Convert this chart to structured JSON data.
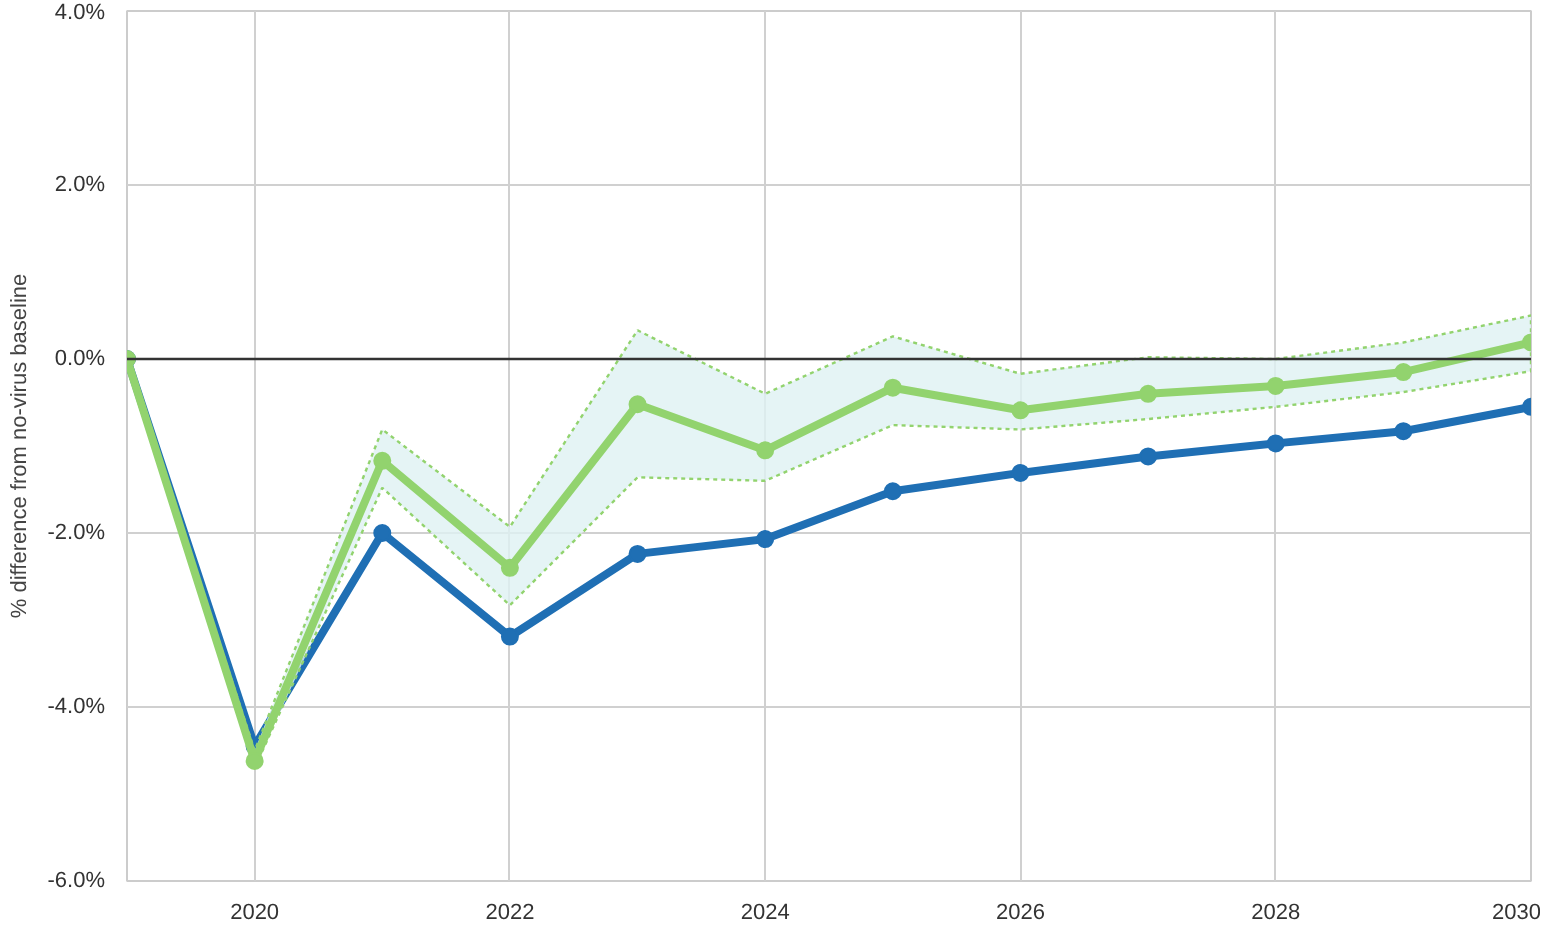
{
  "chart_data": {
    "type": "line",
    "ylabel": "% difference from no-virus baseline",
    "x": [
      2019,
      2020,
      2021,
      2022,
      2023,
      2024,
      2025,
      2026,
      2027,
      2028,
      2029,
      2030
    ],
    "series": [
      {
        "color": "#1f6fb4",
        "values": [
          0,
          -4.45,
          -2.0,
          -3.19,
          -2.24,
          -2.07,
          -1.52,
          -1.31,
          -1.12,
          -0.97,
          -0.83,
          -0.55
        ]
      },
      {
        "color": "#92d36e",
        "values": [
          0,
          -4.62,
          -1.17,
          -2.4,
          -0.52,
          -1.05,
          -0.33,
          -0.59,
          -0.4,
          -0.31,
          -0.15,
          0.19
        ],
        "lower": [
          0,
          -4.7,
          -1.48,
          -2.83,
          -1.36,
          -1.4,
          -0.76,
          -0.81,
          -0.69,
          -0.55,
          -0.38,
          -0.14
        ],
        "upper": [
          0,
          -4.5,
          -0.81,
          -1.93,
          0.33,
          -0.4,
          0.26,
          -0.17,
          0.02,
          0.0,
          0.19,
          0.5
        ]
      }
    ],
    "xlim": [
      2019,
      2030
    ],
    "xticks": [
      2020,
      2022,
      2024,
      2026,
      2028,
      2030
    ],
    "ylim": [
      -6,
      4
    ],
    "yticks": [
      {
        "value": -6,
        "label": "-6.0%"
      },
      {
        "value": -4,
        "label": "-4.0%"
      },
      {
        "value": -2,
        "label": "-2.0%"
      },
      {
        "value": 0,
        "label": "0.0%"
      },
      {
        "value": 2,
        "label": "2.0%"
      },
      {
        "value": 4,
        "label": "4.0%"
      }
    ],
    "ref_lines": [
      {
        "axis": "y",
        "value": 0,
        "color": "#333333"
      }
    ],
    "grid": true,
    "marker": "circle",
    "line_style": "solid"
  }
}
